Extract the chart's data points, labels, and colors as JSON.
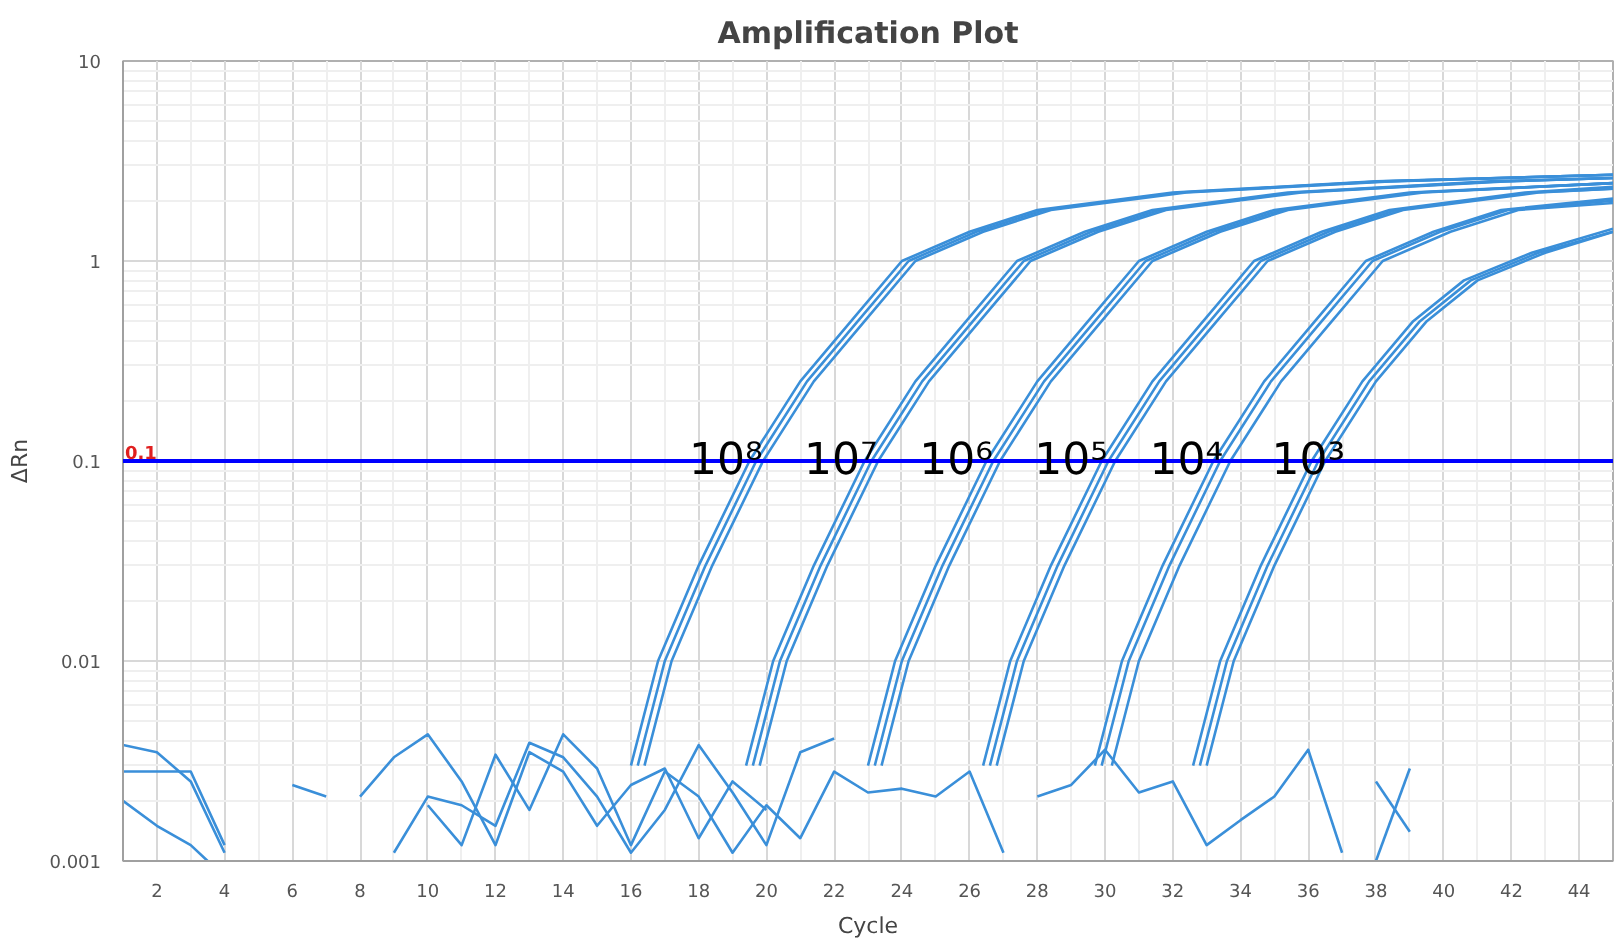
{
  "chart_data": {
    "type": "line",
    "title": "Amplification Plot",
    "xlabel": "Cycle",
    "ylabel": "ΔRn",
    "log": "y",
    "xlim": [
      1,
      45
    ],
    "xticks": [
      2,
      4,
      6,
      8,
      10,
      12,
      14,
      16,
      18,
      20,
      22,
      24,
      26,
      28,
      30,
      32,
      34,
      36,
      38,
      40,
      42,
      44
    ],
    "ylim": [
      0.001,
      10
    ],
    "yticks": [
      0.001,
      0.01,
      0.1,
      1,
      10
    ],
    "grid": true,
    "marker": "none",
    "line_style": "solid",
    "ref_lines": [
      {
        "axis": "y",
        "value": 0.1,
        "label": "0.1",
        "color": "#0000ff",
        "line_style": "solid"
      }
    ],
    "annotations": [
      {
        "text": "10⁸",
        "x": 18.8,
        "y": 0.1
      },
      {
        "text": "10⁷",
        "x": 22.2,
        "y": 0.1
      },
      {
        "text": "10⁶",
        "x": 25.6,
        "y": 0.1
      },
      {
        "text": "10⁵",
        "x": 29.0,
        "y": 0.1
      },
      {
        "text": "10⁴",
        "x": 32.4,
        "y": 0.1
      },
      {
        "text": "10³",
        "x": 36.0,
        "y": 0.1
      }
    ],
    "series": [
      {
        "color": "#3a8fd9",
        "x": [
          16,
          16.8,
          18,
          19.5,
          21,
          22.5,
          24,
          26,
          28,
          32,
          38,
          45
        ],
        "values": [
          0.003,
          0.01,
          0.03,
          0.1,
          0.25,
          0.5,
          1.0,
          1.4,
          1.8,
          2.2,
          2.5,
          2.7
        ]
      },
      {
        "color": "#3a8fd9",
        "x": [
          16.2,
          17.0,
          18.2,
          19.7,
          21.2,
          22.7,
          24.2,
          26.2,
          28.2,
          32.2,
          38.2,
          45
        ],
        "values": [
          0.003,
          0.01,
          0.03,
          0.1,
          0.25,
          0.5,
          1.0,
          1.4,
          1.8,
          2.2,
          2.5,
          2.7
        ]
      },
      {
        "color": "#3a8fd9",
        "x": [
          16.4,
          17.2,
          18.4,
          19.9,
          21.4,
          22.9,
          24.4,
          26.4,
          28.4,
          32.4,
          38.4,
          45
        ],
        "values": [
          0.003,
          0.01,
          0.03,
          0.1,
          0.25,
          0.5,
          1.0,
          1.4,
          1.8,
          2.2,
          2.5,
          2.7
        ]
      },
      {
        "color": "#3a8fd9",
        "x": [
          19.6,
          20.4,
          21.6,
          23.1,
          24.6,
          26.1,
          27.6,
          29.6,
          31.6,
          35.6,
          41.6,
          45
        ],
        "values": [
          0.003,
          0.01,
          0.03,
          0.1,
          0.25,
          0.5,
          1.0,
          1.4,
          1.8,
          2.2,
          2.5,
          2.6
        ]
      },
      {
        "color": "#3a8fd9",
        "x": [
          19.8,
          20.6,
          21.8,
          23.3,
          24.8,
          26.3,
          27.8,
          29.8,
          31.8,
          35.8,
          41.8,
          45
        ],
        "values": [
          0.003,
          0.01,
          0.03,
          0.1,
          0.25,
          0.5,
          1.0,
          1.4,
          1.8,
          2.2,
          2.5,
          2.6
        ]
      },
      {
        "color": "#3a8fd9",
        "x": [
          19.4,
          20.2,
          21.4,
          22.9,
          24.4,
          25.9,
          27.4,
          29.4,
          31.4,
          35.4,
          41.4,
          45
        ],
        "values": [
          0.003,
          0.01,
          0.03,
          0.1,
          0.25,
          0.5,
          1.0,
          1.4,
          1.8,
          2.2,
          2.5,
          2.6
        ]
      },
      {
        "color": "#3a8fd9",
        "x": [
          23.0,
          23.8,
          25.0,
          26.5,
          28.0,
          29.5,
          31.0,
          33.0,
          35.0,
          39.0,
          45
        ],
        "values": [
          0.003,
          0.01,
          0.03,
          0.1,
          0.25,
          0.5,
          1.0,
          1.4,
          1.8,
          2.2,
          2.45
        ]
      },
      {
        "color": "#3a8fd9",
        "x": [
          23.2,
          24.0,
          25.2,
          26.7,
          28.2,
          29.7,
          31.2,
          33.2,
          35.2,
          39.2,
          45
        ],
        "values": [
          0.003,
          0.01,
          0.03,
          0.1,
          0.25,
          0.5,
          1.0,
          1.4,
          1.8,
          2.2,
          2.45
        ]
      },
      {
        "color": "#3a8fd9",
        "x": [
          23.4,
          24.2,
          25.4,
          26.9,
          28.4,
          29.9,
          31.4,
          33.4,
          35.4,
          39.4,
          45
        ],
        "values": [
          0.003,
          0.01,
          0.03,
          0.1,
          0.25,
          0.5,
          1.0,
          1.4,
          1.8,
          2.2,
          2.45
        ]
      },
      {
        "color": "#3a8fd9",
        "x": [
          26.4,
          27.2,
          28.4,
          29.9,
          31.4,
          32.9,
          34.4,
          36.4,
          38.4,
          42.4,
          45
        ],
        "values": [
          0.003,
          0.01,
          0.03,
          0.1,
          0.25,
          0.5,
          1.0,
          1.4,
          1.8,
          2.2,
          2.35
        ]
      },
      {
        "color": "#3a8fd9",
        "x": [
          26.6,
          27.4,
          28.6,
          30.1,
          31.6,
          33.1,
          34.6,
          36.6,
          38.6,
          42.6,
          45
        ],
        "values": [
          0.003,
          0.01,
          0.03,
          0.1,
          0.25,
          0.5,
          1.0,
          1.4,
          1.8,
          2.2,
          2.3
        ]
      },
      {
        "color": "#3a8fd9",
        "x": [
          26.8,
          27.6,
          28.8,
          30.3,
          31.8,
          33.3,
          34.8,
          36.8,
          38.8,
          42.8,
          45
        ],
        "values": [
          0.003,
          0.01,
          0.03,
          0.1,
          0.25,
          0.5,
          1.0,
          1.4,
          1.8,
          2.2,
          2.3
        ]
      },
      {
        "color": "#3a8fd9",
        "x": [
          29.7,
          30.5,
          31.7,
          33.2,
          34.7,
          36.2,
          37.7,
          39.7,
          41.7,
          45
        ],
        "values": [
          0.003,
          0.01,
          0.03,
          0.1,
          0.25,
          0.5,
          1.0,
          1.4,
          1.8,
          2.05
        ]
      },
      {
        "color": "#3a8fd9",
        "x": [
          29.9,
          30.7,
          31.9,
          33.4,
          34.9,
          36.4,
          37.9,
          39.9,
          41.9,
          45
        ],
        "values": [
          0.003,
          0.01,
          0.03,
          0.1,
          0.25,
          0.5,
          1.0,
          1.4,
          1.8,
          2.0
        ]
      },
      {
        "color": "#3a8fd9",
        "x": [
          30.2,
          31.0,
          32.2,
          33.7,
          35.2,
          36.7,
          38.2,
          40.2,
          42.2,
          45
        ],
        "values": [
          0.003,
          0.01,
          0.03,
          0.1,
          0.25,
          0.5,
          1.0,
          1.4,
          1.8,
          1.95
        ]
      },
      {
        "color": "#3a8fd9",
        "x": [
          32.6,
          33.4,
          34.6,
          36.1,
          37.6,
          39.1,
          40.6,
          42.6,
          45
        ],
        "values": [
          0.003,
          0.01,
          0.03,
          0.1,
          0.25,
          0.5,
          0.8,
          1.1,
          1.45
        ]
      },
      {
        "color": "#3a8fd9",
        "x": [
          32.8,
          33.6,
          34.8,
          36.3,
          37.8,
          39.3,
          40.8,
          42.8,
          45
        ],
        "values": [
          0.003,
          0.01,
          0.03,
          0.1,
          0.25,
          0.5,
          0.8,
          1.1,
          1.4
        ]
      },
      {
        "color": "#3a8fd9",
        "x": [
          33.0,
          33.8,
          35.0,
          36.5,
          38.0,
          39.5,
          41.0,
          43.0,
          45
        ],
        "values": [
          0.003,
          0.01,
          0.03,
          0.1,
          0.25,
          0.5,
          0.8,
          1.1,
          1.4
        ]
      },
      {
        "color": "#3a8fd9",
        "x": [
          1,
          2,
          3,
          4
        ],
        "values": [
          0.0038,
          0.0035,
          0.0025,
          0.0011
        ]
      },
      {
        "color": "#3a8fd9",
        "x": [
          1,
          2,
          3,
          4
        ],
        "values": [
          0.0028,
          0.0028,
          0.0028,
          0.0012
        ]
      },
      {
        "color": "#3a8fd9",
        "x": [
          1,
          2,
          3,
          3.5
        ],
        "values": [
          0.002,
          0.0015,
          0.0012,
          0.001
        ]
      },
      {
        "color": "#3a8fd9",
        "x": [
          6,
          7
        ],
        "values": [
          0.0024,
          0.0021
        ]
      },
      {
        "color": "#3a8fd9",
        "x": [
          8,
          9,
          10,
          11,
          12,
          13,
          14,
          15,
          16,
          17,
          18,
          19,
          20
        ],
        "values": [
          0.0021,
          0.0033,
          0.0043,
          0.0025,
          0.0012,
          0.0035,
          0.0028,
          0.0015,
          0.0024,
          0.0029,
          0.0013,
          0.0025,
          0.0018
        ]
      },
      {
        "color": "#3a8fd9",
        "x": [
          9,
          10,
          11,
          12,
          13,
          14,
          15,
          16,
          17,
          18,
          19,
          20,
          21,
          22
        ],
        "values": [
          0.0011,
          0.0021,
          0.0019,
          0.0015,
          0.0039,
          0.0033,
          0.0021,
          0.0011,
          0.0018,
          0.0038,
          0.0022,
          0.0012,
          0.0035,
          0.0041
        ]
      },
      {
        "color": "#3a8fd9",
        "x": [
          10,
          11,
          12,
          13,
          14,
          15,
          16,
          17,
          18,
          19,
          20,
          21,
          22,
          23,
          24,
          25,
          26,
          27
        ],
        "values": [
          0.0019,
          0.0012,
          0.0034,
          0.0018,
          0.0043,
          0.0029,
          0.0012,
          0.0028,
          0.0021,
          0.0011,
          0.0019,
          0.0013,
          0.0028,
          0.0022,
          0.0023,
          0.0021,
          0.0028,
          0.0011
        ]
      },
      {
        "color": "#3a8fd9",
        "x": [
          28,
          29,
          30,
          31,
          32,
          33,
          34,
          35,
          36,
          37
        ],
        "values": [
          0.0021,
          0.0024,
          0.0036,
          0.0022,
          0.0025,
          0.0012,
          0.0016,
          0.0021,
          0.0036,
          0.0011
        ]
      },
      {
        "color": "#3a8fd9",
        "x": [
          38,
          39
        ],
        "values": [
          0.001,
          0.0029
        ]
      },
      {
        "color": "#3a8fd9",
        "x": [
          38,
          39
        ],
        "values": [
          0.0025,
          0.0014
        ]
      }
    ]
  }
}
